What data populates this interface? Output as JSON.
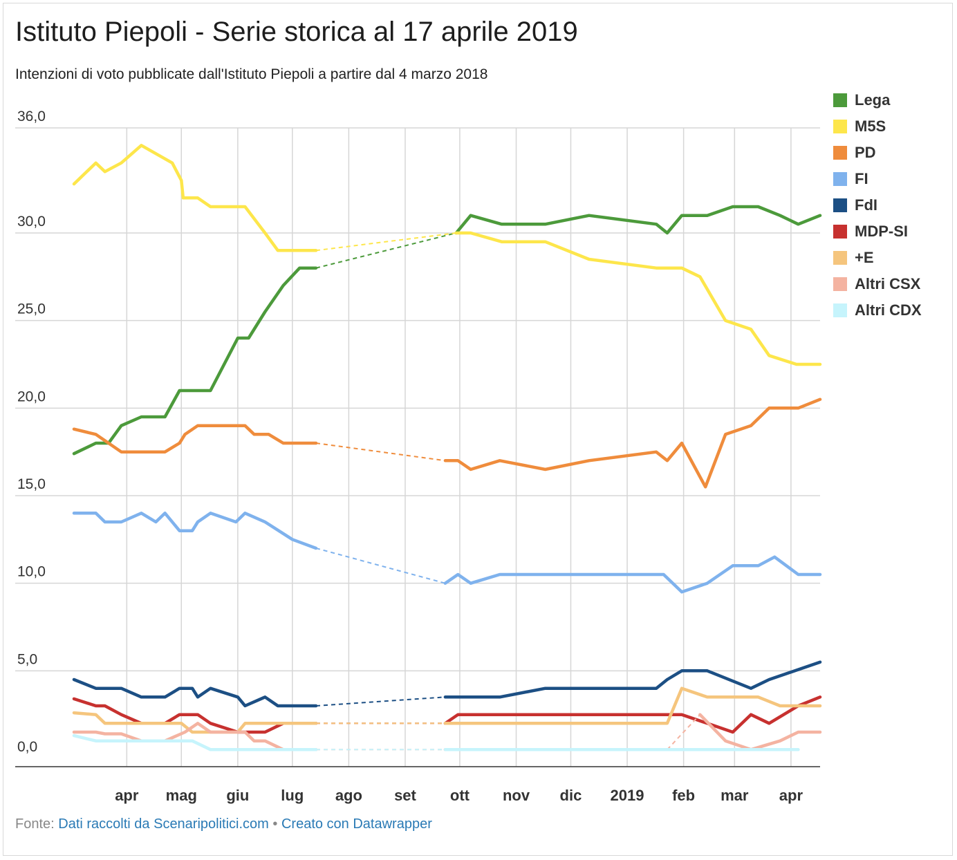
{
  "title": "Istituto Piepoli - Serie storica al 17 aprile 2019",
  "subtitle": "Intenzioni di voto pubblicate dall'Istituto Piepoli a partire dal 4 marzo 2018",
  "footer": {
    "prefix": "Fonte:",
    "source_link": "Dati raccolti da Scenaripolitici.com",
    "separator": "•",
    "credit_link": "Creato con Datawrapper"
  },
  "chart_data": {
    "type": "line",
    "title": "Istituto Piepoli - Serie storica al 17 aprile 2019",
    "xlabel": "",
    "ylabel": "",
    "ylim": [
      0,
      36
    ],
    "y_ticks": [
      0,
      5,
      10,
      15,
      20,
      25,
      30,
      36
    ],
    "y_tick_labels": [
      "0,0",
      "5,0",
      "10,0",
      "15,0",
      "20,0",
      "25,0",
      "30,0",
      "36,0"
    ],
    "x_range": [
      "2018-03-03",
      "2019-04-17"
    ],
    "x_ticks": [
      {
        "date": "2018-04-01",
        "label": "apr"
      },
      {
        "date": "2018-05-01",
        "label": "mag"
      },
      {
        "date": "2018-06-01",
        "label": "giu"
      },
      {
        "date": "2018-07-01",
        "label": "lug"
      },
      {
        "date": "2018-08-01",
        "label": "ago"
      },
      {
        "date": "2018-09-01",
        "label": "set"
      },
      {
        "date": "2018-10-01",
        "label": "ott"
      },
      {
        "date": "2018-11-01",
        "label": "nov"
      },
      {
        "date": "2018-12-01",
        "label": "dic"
      },
      {
        "date": "2019-01-01",
        "label": "2019"
      },
      {
        "date": "2019-02-01",
        "label": "feb"
      },
      {
        "date": "2019-03-01",
        "label": "mar"
      },
      {
        "date": "2019-04-01",
        "label": "apr"
      }
    ],
    "grid": "vertical and horizontal",
    "legend": "right",
    "series": [
      {
        "name": "Lega",
        "color": "#4c9a3b",
        "points": [
          [
            "2018-03-03",
            17.4
          ],
          [
            "2018-03-15",
            18.0
          ],
          [
            "2018-03-22",
            18.0
          ],
          [
            "2018-03-29",
            19.0
          ],
          [
            "2018-04-09",
            19.5
          ],
          [
            "2018-04-22",
            19.5
          ],
          [
            "2018-04-30",
            21.0
          ],
          [
            "2018-05-17",
            21.0
          ],
          [
            "2018-06-01",
            24.0
          ],
          [
            "2018-06-07",
            24.0
          ],
          [
            "2018-06-16",
            25.5
          ],
          [
            "2018-06-26",
            27.0
          ],
          [
            "2018-07-05",
            28.0
          ],
          [
            "2018-07-14",
            28.0
          ],
          [
            "2018-09-29",
            30.0
          ],
          [
            "2018-10-07",
            31.0
          ],
          [
            "2018-10-24",
            30.5
          ],
          [
            "2018-11-17",
            30.5
          ],
          [
            "2018-12-11",
            31.0
          ],
          [
            "2019-01-17",
            30.5
          ],
          [
            "2019-01-23",
            30.0
          ],
          [
            "2019-01-31",
            31.0
          ],
          [
            "2019-02-14",
            31.0
          ],
          [
            "2019-02-28",
            31.5
          ],
          [
            "2019-03-14",
            31.5
          ],
          [
            "2019-03-26",
            31.0
          ],
          [
            "2019-04-05",
            30.5
          ],
          [
            "2019-04-17",
            31.0
          ]
        ],
        "gap_after": 13
      },
      {
        "name": "M5S",
        "color": "#fde64b",
        "points": [
          [
            "2018-03-03",
            32.8
          ],
          [
            "2018-03-15",
            34.0
          ],
          [
            "2018-03-20",
            33.5
          ],
          [
            "2018-03-29",
            34.0
          ],
          [
            "2018-04-09",
            35.0
          ],
          [
            "2018-04-26",
            34.0
          ],
          [
            "2018-05-01",
            33.0
          ],
          [
            "2018-05-02",
            32.0
          ],
          [
            "2018-05-10",
            32.0
          ],
          [
            "2018-05-17",
            31.5
          ],
          [
            "2018-06-05",
            31.5
          ],
          [
            "2018-06-16",
            30.0
          ],
          [
            "2018-06-23",
            29.0
          ],
          [
            "2018-07-14",
            29.0
          ],
          [
            "2018-09-29",
            30.0
          ],
          [
            "2018-10-07",
            30.0
          ],
          [
            "2018-10-24",
            29.5
          ],
          [
            "2018-11-17",
            29.5
          ],
          [
            "2018-12-11",
            28.5
          ],
          [
            "2019-01-17",
            28.0
          ],
          [
            "2019-01-31",
            28.0
          ],
          [
            "2019-02-10",
            27.5
          ],
          [
            "2019-02-24",
            25.0
          ],
          [
            "2019-03-10",
            24.5
          ],
          [
            "2019-03-20",
            23.0
          ],
          [
            "2019-04-04",
            22.5
          ],
          [
            "2019-04-17",
            22.5
          ]
        ],
        "gap_after": 13
      },
      {
        "name": "PD",
        "color": "#ef8c3c",
        "points": [
          [
            "2018-03-03",
            18.8
          ],
          [
            "2018-03-15",
            18.5
          ],
          [
            "2018-03-29",
            17.5
          ],
          [
            "2018-04-22",
            17.5
          ],
          [
            "2018-04-30",
            18.0
          ],
          [
            "2018-05-03",
            18.5
          ],
          [
            "2018-05-10",
            19.0
          ],
          [
            "2018-06-05",
            19.0
          ],
          [
            "2018-06-10",
            18.5
          ],
          [
            "2018-06-18",
            18.5
          ],
          [
            "2018-06-26",
            18.0
          ],
          [
            "2018-07-14",
            18.0
          ],
          [
            "2018-09-23",
            17.0
          ],
          [
            "2018-09-30",
            17.0
          ],
          [
            "2018-10-07",
            16.5
          ],
          [
            "2018-10-23",
            17.0
          ],
          [
            "2018-11-17",
            16.5
          ],
          [
            "2018-12-11",
            17.0
          ],
          [
            "2019-01-17",
            17.5
          ],
          [
            "2019-01-23",
            17.0
          ],
          [
            "2019-01-31",
            18.0
          ],
          [
            "2019-02-13",
            15.5
          ],
          [
            "2019-02-24",
            18.5
          ],
          [
            "2019-03-10",
            19.0
          ],
          [
            "2019-03-20",
            20.0
          ],
          [
            "2019-04-05",
            20.0
          ],
          [
            "2019-04-17",
            20.5
          ]
        ],
        "gap_after": 11
      },
      {
        "name": "FI",
        "color": "#7fb2ed",
        "points": [
          [
            "2018-03-03",
            14.0
          ],
          [
            "2018-03-15",
            14.0
          ],
          [
            "2018-03-20",
            13.5
          ],
          [
            "2018-03-29",
            13.5
          ],
          [
            "2018-04-09",
            14.0
          ],
          [
            "2018-04-17",
            13.5
          ],
          [
            "2018-04-22",
            14.0
          ],
          [
            "2018-04-30",
            13.0
          ],
          [
            "2018-05-07",
            13.0
          ],
          [
            "2018-05-10",
            13.5
          ],
          [
            "2018-05-17",
            14.0
          ],
          [
            "2018-05-31",
            13.5
          ],
          [
            "2018-06-05",
            14.0
          ],
          [
            "2018-06-16",
            13.5
          ],
          [
            "2018-07-01",
            12.5
          ],
          [
            "2018-07-14",
            12.0
          ],
          [
            "2018-09-23",
            10.0
          ],
          [
            "2018-09-30",
            10.5
          ],
          [
            "2018-10-07",
            10.0
          ],
          [
            "2018-10-23",
            10.5
          ],
          [
            "2019-01-21",
            10.5
          ],
          [
            "2019-01-31",
            9.5
          ],
          [
            "2019-02-14",
            10.0
          ],
          [
            "2019-02-28",
            11.0
          ],
          [
            "2019-03-14",
            11.0
          ],
          [
            "2019-03-23",
            11.5
          ],
          [
            "2019-04-05",
            10.5
          ],
          [
            "2019-04-17",
            10.5
          ]
        ],
        "gap_after": 15
      },
      {
        "name": "FdI",
        "color": "#1c4f84",
        "points": [
          [
            "2018-03-03",
            4.5
          ],
          [
            "2018-03-15",
            4.0
          ],
          [
            "2018-03-29",
            4.0
          ],
          [
            "2018-04-09",
            3.5
          ],
          [
            "2018-04-22",
            3.5
          ],
          [
            "2018-04-30",
            4.0
          ],
          [
            "2018-05-07",
            4.0
          ],
          [
            "2018-05-10",
            3.5
          ],
          [
            "2018-05-17",
            4.0
          ],
          [
            "2018-06-01",
            3.5
          ],
          [
            "2018-06-05",
            3.0
          ],
          [
            "2018-06-16",
            3.5
          ],
          [
            "2018-06-23",
            3.0
          ],
          [
            "2018-07-14",
            3.0
          ],
          [
            "2018-09-23",
            3.5
          ],
          [
            "2018-10-23",
            3.5
          ],
          [
            "2018-11-17",
            4.0
          ],
          [
            "2019-01-17",
            4.0
          ],
          [
            "2019-01-23",
            4.5
          ],
          [
            "2019-01-31",
            5.0
          ],
          [
            "2019-02-14",
            5.0
          ],
          [
            "2019-03-10",
            4.0
          ],
          [
            "2019-03-20",
            4.5
          ],
          [
            "2019-04-17",
            5.5
          ]
        ],
        "gap_after": 13
      },
      {
        "name": "MDP-SI",
        "color": "#c7312f",
        "points": [
          [
            "2018-03-03",
            3.4
          ],
          [
            "2018-03-15",
            3.0
          ],
          [
            "2018-03-20",
            3.0
          ],
          [
            "2018-03-29",
            2.5
          ],
          [
            "2018-04-09",
            2.0
          ],
          [
            "2018-04-22",
            2.0
          ],
          [
            "2018-04-30",
            2.5
          ],
          [
            "2018-05-10",
            2.5
          ],
          [
            "2018-05-17",
            2.0
          ],
          [
            "2018-06-01",
            1.5
          ],
          [
            "2018-06-16",
            1.5
          ],
          [
            "2018-06-26",
            2.0
          ],
          [
            "2018-07-14",
            2.0
          ],
          [
            "2018-09-23",
            2.0
          ],
          [
            "2018-09-30",
            2.5
          ],
          [
            "2019-01-31",
            2.5
          ],
          [
            "2019-02-14",
            2.0
          ],
          [
            "2019-02-28",
            1.5
          ],
          [
            "2019-03-10",
            2.5
          ],
          [
            "2019-03-20",
            2.0
          ],
          [
            "2019-04-05",
            3.0
          ],
          [
            "2019-04-17",
            3.5
          ]
        ],
        "gap_after": 12
      },
      {
        "name": "+E",
        "color": "#f5c57d",
        "points": [
          [
            "2018-03-03",
            2.6
          ],
          [
            "2018-03-15",
            2.5
          ],
          [
            "2018-03-20",
            2.0
          ],
          [
            "2018-04-22",
            2.0
          ],
          [
            "2018-05-01",
            2.0
          ],
          [
            "2018-05-07",
            1.5
          ],
          [
            "2018-05-17",
            1.5
          ],
          [
            "2018-06-01",
            1.5
          ],
          [
            "2018-06-05",
            2.0
          ],
          [
            "2018-07-14",
            2.0
          ],
          [
            "2018-09-23",
            2.0
          ],
          [
            "2019-01-23",
            2.0
          ],
          [
            "2019-01-31",
            4.0
          ],
          [
            "2019-02-14",
            3.5
          ],
          [
            "2019-03-14",
            3.5
          ],
          [
            "2019-03-26",
            3.0
          ],
          [
            "2019-04-17",
            3.0
          ]
        ],
        "gap_after": 9
      },
      {
        "name": "Altri CSX",
        "color": "#f4b3a1",
        "points": [
          [
            "2018-03-03",
            1.5
          ],
          [
            "2018-03-15",
            1.5
          ],
          [
            "2018-03-20",
            1.4
          ],
          [
            "2018-03-29",
            1.4
          ],
          [
            "2018-04-09",
            1.0
          ],
          [
            "2018-04-22",
            1.0
          ],
          [
            "2018-05-03",
            1.5
          ],
          [
            "2018-05-10",
            2.0
          ],
          [
            "2018-05-17",
            1.5
          ],
          [
            "2018-06-05",
            1.5
          ],
          [
            "2018-06-10",
            1.0
          ],
          [
            "2018-06-16",
            1.0
          ],
          [
            "2018-06-26",
            0.5
          ],
          [
            "2018-07-14",
            0.5
          ],
          [
            "2018-09-23",
            0.5
          ],
          [
            "2019-01-23",
            0.5
          ],
          [
            "2019-02-10",
            2.5
          ],
          [
            "2019-02-24",
            1.0
          ],
          [
            "2019-03-10",
            0.5
          ],
          [
            "2019-03-26",
            1.0
          ],
          [
            "2019-04-05",
            1.5
          ],
          [
            "2019-04-17",
            1.5
          ]
        ],
        "gap_after": 13,
        "gap2_after": 15
      },
      {
        "name": "Altri CDX",
        "color": "#c6f4fc",
        "points": [
          [
            "2018-03-03",
            1.3
          ],
          [
            "2018-03-15",
            1.0
          ],
          [
            "2018-04-22",
            1.0
          ],
          [
            "2018-05-07",
            1.0
          ],
          [
            "2018-05-17",
            0.5
          ],
          [
            "2018-07-14",
            0.5
          ],
          [
            "2018-09-23",
            0.5
          ],
          [
            "2019-04-05",
            0.5
          ]
        ],
        "gap_after": 5
      }
    ]
  }
}
